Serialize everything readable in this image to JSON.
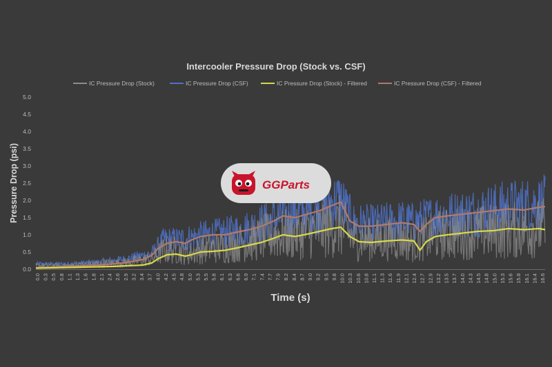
{
  "logo": {
    "text": "GGParts"
  },
  "chart_data": {
    "type": "line",
    "title": "Intercooler Pressure Drop (Stock vs. CSF)",
    "xlabel": "Time (s)",
    "ylabel": "Pressure Drop (psi)",
    "ylim": [
      0,
      5
    ],
    "xlim": [
      0,
      16.7
    ],
    "y_ticks": [
      "0.0",
      "0.5",
      "1.0",
      "1.5",
      "2.0",
      "2.5",
      "3.0",
      "3.5",
      "4.0",
      "4.5",
      "5.0"
    ],
    "x_ticks": [
      "0.0",
      "0.3",
      "0.5",
      "0.8",
      "1.1",
      "1.3",
      "1.6",
      "1.8",
      "2.1",
      "2.4",
      "2.6",
      "2.9",
      "3.2",
      "3.4",
      "3.7",
      "4.0",
      "4.2",
      "4.5",
      "4.8",
      "5.0",
      "5.3",
      "5.5",
      "5.8",
      "6.1",
      "6.3",
      "6.6",
      "6.9",
      "7.1",
      "7.4",
      "7.7",
      "7.9",
      "8.2",
      "8.4",
      "8.7",
      "9.0",
      "9.2",
      "9.5",
      "9.8",
      "10.0",
      "10.3",
      "10.6",
      "10.8",
      "11.1",
      "11.3",
      "11.6",
      "11.9",
      "12.1",
      "12.4",
      "12.7",
      "12.9",
      "13.2",
      "13.5",
      "13.7",
      "14.0",
      "14.3",
      "14.5",
      "14.8",
      "15.0",
      "15.3",
      "15.6",
      "15.8",
      "16.1",
      "16.4",
      "16.6"
    ],
    "grid": false,
    "legend_position": "top",
    "series": [
      {
        "name": "IC Pressure Drop (Stock)",
        "color": "#8c8c8c",
        "x": [
          0,
          1,
          2,
          3,
          3.8,
          4.2,
          4.6,
          5.0,
          5.6,
          6.2,
          7.0,
          7.6,
          8.0,
          8.6,
          9.0,
          9.6,
          10.0,
          10.4,
          11.0,
          12.0,
          12.4,
          12.8,
          13.2,
          14.0,
          15.0,
          16.0,
          16.7
        ],
        "y": [
          0.1,
          0.1,
          0.15,
          0.2,
          0.3,
          0.55,
          0.55,
          0.45,
          0.6,
          0.65,
          0.8,
          0.95,
          1.0,
          1.0,
          1.1,
          1.2,
          1.25,
          0.9,
          0.85,
          0.9,
          0.75,
          0.9,
          1.0,
          1.05,
          1.1,
          1.15,
          1.2
        ]
      },
      {
        "name": "IC Pressure Drop (CSF)",
        "color": "#4f72c8",
        "x": [
          0,
          1,
          2,
          3,
          3.8,
          4.2,
          4.6,
          5.0,
          5.6,
          6.2,
          7.0,
          7.6,
          8.0,
          8.6,
          9.0,
          9.6,
          10.0,
          10.4,
          11.0,
          12.0,
          12.4,
          12.8,
          13.2,
          14.0,
          15.0,
          16.0,
          16.7
        ],
        "y": [
          0.15,
          0.15,
          0.2,
          0.3,
          0.45,
          0.85,
          0.85,
          0.9,
          1.0,
          1.05,
          1.2,
          1.4,
          1.5,
          1.6,
          1.7,
          1.9,
          2.0,
          1.35,
          1.3,
          1.4,
          1.35,
          1.45,
          1.55,
          1.6,
          1.75,
          1.85,
          1.9
        ]
      },
      {
        "name": "IC Pressure Drop (Stock) - Filtered",
        "color": "#d8d84a",
        "x": [
          0,
          0.5,
          1,
          1.5,
          2,
          2.5,
          3,
          3.5,
          3.8,
          4.0,
          4.3,
          4.6,
          4.9,
          5.1,
          5.4,
          5.8,
          6.2,
          6.6,
          7.0,
          7.4,
          7.8,
          8.1,
          8.5,
          8.9,
          9.3,
          9.7,
          10.0,
          10.3,
          10.6,
          11.0,
          11.5,
          12.0,
          12.4,
          12.6,
          12.8,
          13.1,
          13.5,
          14.0,
          14.5,
          15.0,
          15.5,
          16.0,
          16.5,
          16.7
        ],
        "y": [
          0.03,
          0.04,
          0.05,
          0.06,
          0.07,
          0.08,
          0.1,
          0.12,
          0.18,
          0.3,
          0.42,
          0.44,
          0.38,
          0.42,
          0.5,
          0.52,
          0.55,
          0.62,
          0.7,
          0.78,
          0.9,
          1.0,
          0.95,
          1.02,
          1.1,
          1.18,
          1.22,
          0.95,
          0.8,
          0.78,
          0.82,
          0.85,
          0.82,
          0.55,
          0.8,
          0.95,
          1.0,
          1.05,
          1.1,
          1.12,
          1.18,
          1.15,
          1.18,
          1.15
        ]
      },
      {
        "name": "IC Pressure Drop (CSF) - Filtered",
        "color": "#b07a6e",
        "x": [
          0,
          0.5,
          1,
          1.5,
          2,
          2.5,
          3,
          3.5,
          3.8,
          4.0,
          4.3,
          4.6,
          4.9,
          5.1,
          5.4,
          5.8,
          6.2,
          6.6,
          7.0,
          7.4,
          7.8,
          8.1,
          8.5,
          8.9,
          9.3,
          9.7,
          10.0,
          10.3,
          10.6,
          11.0,
          11.5,
          12.0,
          12.4,
          12.6,
          12.8,
          13.1,
          13.5,
          14.0,
          14.5,
          15.0,
          15.5,
          16.0,
          16.5,
          16.7
        ],
        "y": [
          0.05,
          0.06,
          0.08,
          0.1,
          0.12,
          0.15,
          0.2,
          0.28,
          0.4,
          0.6,
          0.75,
          0.8,
          0.75,
          0.85,
          0.95,
          1.0,
          1.0,
          1.08,
          1.15,
          1.25,
          1.4,
          1.55,
          1.5,
          1.6,
          1.7,
          1.85,
          1.95,
          1.4,
          1.25,
          1.25,
          1.3,
          1.35,
          1.3,
          1.1,
          1.3,
          1.5,
          1.55,
          1.6,
          1.65,
          1.7,
          1.75,
          1.72,
          1.8,
          1.82
        ]
      }
    ]
  }
}
